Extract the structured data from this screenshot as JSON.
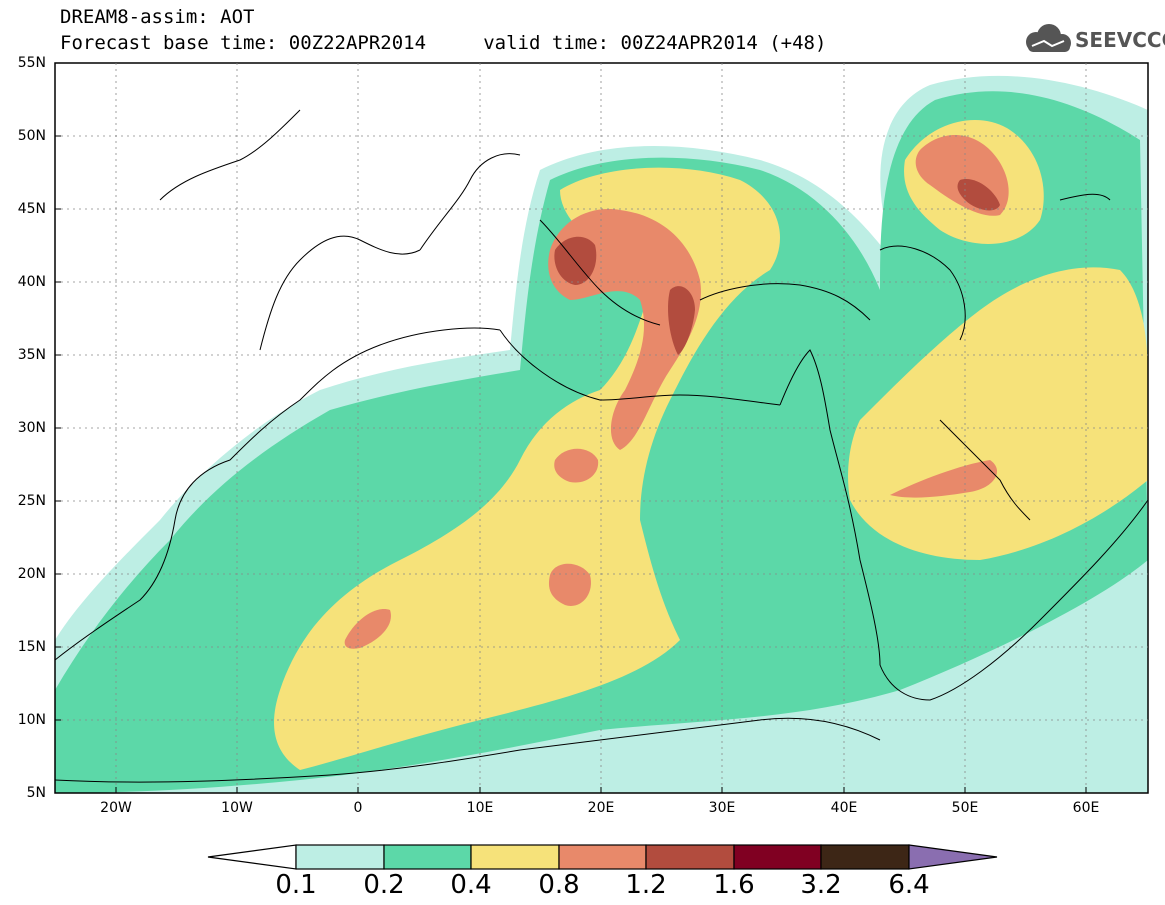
{
  "header": {
    "title_line1": "DREAM8-assim: AOT",
    "title_line2": "Forecast base time: 00Z22APR2014     valid time: 00Z24APR2014 (+48)"
  },
  "logo": {
    "text": "SEEVCCC",
    "icon": "cloud-logo-icon"
  },
  "map": {
    "lat_labels": [
      "55N",
      "50N",
      "45N",
      "40N",
      "35N",
      "30N",
      "25N",
      "20N",
      "15N",
      "10N",
      "5N"
    ],
    "lon_labels": [
      "20W",
      "10W",
      "0",
      "10E",
      "20E",
      "30E",
      "40E",
      "50E",
      "60E"
    ],
    "colors": {
      "c01": "#bdeee4",
      "c02": "#5cd8a8",
      "c04": "#f6e27a",
      "c08": "#e8896a",
      "c12": "#b24c3e",
      "c16": "#800022",
      "c32": "#3d2616",
      "c64": "#8a6eb0"
    }
  },
  "colorbar": {
    "labels": [
      "0.1",
      "0.2",
      "0.4",
      "0.8",
      "1.2",
      "1.6",
      "3.2",
      "6.4"
    ]
  }
}
